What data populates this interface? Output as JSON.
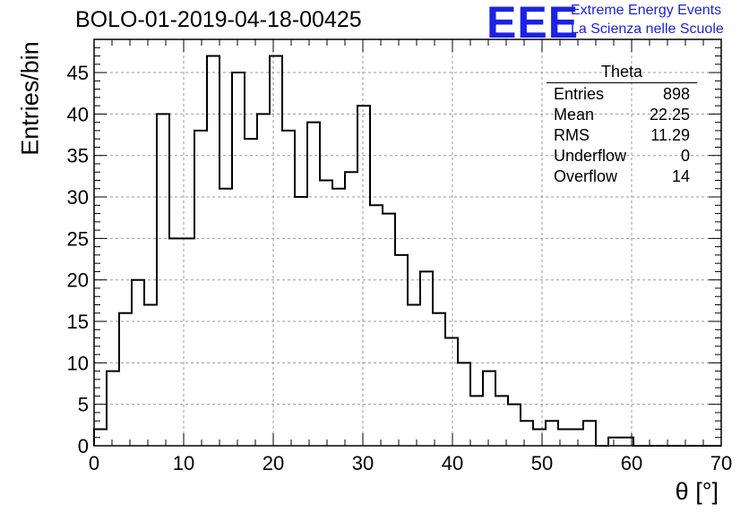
{
  "chart_data": {
    "type": "bar",
    "title": "BOLO-01-2019-04-18-00425",
    "xlabel": "θ [°]",
    "ylabel": "Entries/bin",
    "xlim": [
      0,
      70
    ],
    "ylim": [
      0,
      49
    ],
    "bin_width": 1.4,
    "x_ticks": [
      0,
      10,
      20,
      30,
      40,
      50,
      60,
      70
    ],
    "y_ticks": [
      0,
      5,
      10,
      15,
      20,
      25,
      30,
      35,
      40,
      45
    ],
    "grid": true,
    "values": [
      2,
      9,
      16,
      20,
      17,
      40,
      25,
      25,
      38,
      47,
      31,
      45,
      37,
      40,
      47,
      38,
      30,
      39,
      32,
      31,
      33,
      41,
      29,
      28,
      23,
      17,
      21,
      16,
      13,
      10,
      6,
      9,
      6,
      5,
      3,
      2,
      3,
      2,
      2,
      3,
      0,
      1,
      1,
      0,
      0,
      0,
      0,
      0,
      0,
      0
    ],
    "stats_box": {
      "title": "Theta",
      "rows": [
        {
          "label": "Entries",
          "value": "898"
        },
        {
          "label": "Mean",
          "value": "22.25"
        },
        {
          "label": "RMS",
          "value": "11.29"
        },
        {
          "label": "Underflow",
          "value": "0"
        },
        {
          "label": "Overflow",
          "value": "14"
        }
      ]
    }
  },
  "branding": {
    "logo_text": "EEE",
    "line1": "Extreme Energy Events",
    "line2": "La Scienza nelle Scuole",
    "color": "#1c22e4"
  }
}
